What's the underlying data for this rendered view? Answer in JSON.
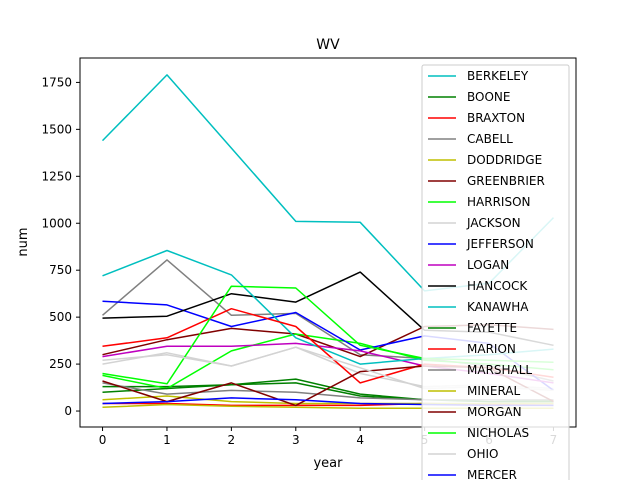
{
  "chart_data": {
    "type": "line",
    "title": "WV",
    "xlabel": "year",
    "ylabel": "num",
    "xlim": [
      -0.35,
      7.35
    ],
    "ylim": [
      -85,
      1880
    ],
    "xticks": [
      0,
      1,
      2,
      3,
      4,
      5,
      6,
      7
    ],
    "yticks": [
      0,
      250,
      500,
      750,
      1000,
      1250,
      1500,
      1750
    ],
    "legend_placement": "upper right",
    "grid": false,
    "x": [
      0,
      1,
      2,
      3,
      4,
      5,
      6,
      7
    ],
    "series": [
      {
        "name": "BERKELEY",
        "color": "#00bfbf",
        "values": [
          1440,
          1790,
          1400,
          1010,
          1005,
          640,
          680,
          1030
        ]
      },
      {
        "name": "BOONE",
        "color": "#008000",
        "values": [
          130,
          130,
          140,
          170,
          90,
          60,
          50,
          50
        ]
      },
      {
        "name": "BRAXTON",
        "color": "#ff0000",
        "values": [
          40,
          40,
          30,
          30,
          30,
          40,
          35,
          30
        ]
      },
      {
        "name": "CABELL",
        "color": "#808080",
        "values": [
          510,
          805,
          510,
          520,
          300,
          280,
          240,
          160
        ]
      },
      {
        "name": "DODDRIDGE",
        "color": "#bfbf00",
        "values": [
          20,
          35,
          25,
          20,
          15,
          15,
          15,
          15
        ]
      },
      {
        "name": "GREENBRIER",
        "color": "#800000",
        "values": [
          300,
          380,
          440,
          410,
          290,
          450,
          460,
          435
        ]
      },
      {
        "name": "HARRISON",
        "color": "#00ff00",
        "values": [
          190,
          120,
          320,
          410,
          360,
          270,
          250,
          220
        ]
      },
      {
        "name": "JACKSON",
        "color": "#d3d3d3",
        "values": [
          250,
          310,
          240,
          340,
          200,
          130,
          140,
          120
        ]
      },
      {
        "name": "JEFFERSON",
        "color": "#0000ff",
        "values": [
          585,
          565,
          450,
          525,
          325,
          400,
          360,
          110
        ]
      },
      {
        "name": "LOGAN",
        "color": "#bf00bf",
        "values": [
          290,
          345,
          345,
          360,
          320,
          240,
          200,
          150
        ]
      },
      {
        "name": "HANCOCK",
        "color": "#000000",
        "values": [
          495,
          505,
          625,
          580,
          740,
          430,
          420,
          350
        ]
      },
      {
        "name": "KANAWHA",
        "color": "#00bfbf",
        "values": [
          720,
          855,
          725,
          390,
          250,
          280,
          300,
          330
        ]
      },
      {
        "name": "FAYETTE",
        "color": "#008000",
        "values": [
          100,
          120,
          140,
          150,
          80,
          60,
          60,
          55
        ]
      },
      {
        "name": "MARION",
        "color": "#ff0000",
        "values": [
          345,
          390,
          545,
          450,
          150,
          250,
          230,
          180
        ]
      },
      {
        "name": "MARSHALL",
        "color": "#808080",
        "values": [
          150,
          90,
          110,
          100,
          70,
          60,
          60,
          60
        ]
      },
      {
        "name": "MINERAL",
        "color": "#bfbf00",
        "values": [
          60,
          80,
          50,
          40,
          40,
          40,
          40,
          40
        ]
      },
      {
        "name": "MORGAN",
        "color": "#800000",
        "values": [
          160,
          50,
          150,
          30,
          210,
          240,
          230,
          50
        ]
      },
      {
        "name": "NICHOLAS",
        "color": "#00ff00",
        "values": [
          200,
          145,
          665,
          655,
          350,
          280,
          270,
          260
        ]
      },
      {
        "name": "OHIO",
        "color": "#d3d3d3",
        "values": [
          270,
          300,
          240,
          340,
          230,
          120,
          130,
          110
        ]
      },
      {
        "name": "MERCER",
        "color": "#0000ff",
        "values": [
          40,
          50,
          70,
          60,
          40,
          35,
          30,
          30
        ]
      }
    ]
  }
}
